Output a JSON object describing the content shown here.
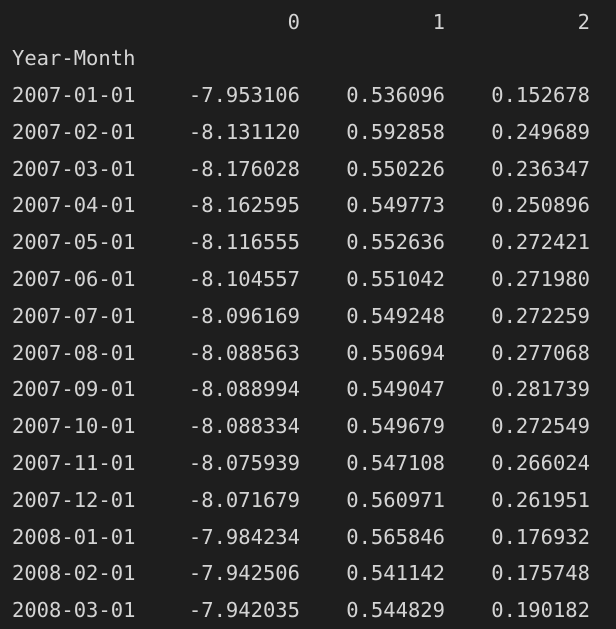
{
  "table": {
    "columns": [
      "0",
      "1",
      "2"
    ],
    "index_name": "Year-Month",
    "rows": [
      {
        "index": "2007-01-01",
        "values": [
          "-7.953106",
          "0.536096",
          "0.152678"
        ]
      },
      {
        "index": "2007-02-01",
        "values": [
          "-8.131120",
          "0.592858",
          "0.249689"
        ]
      },
      {
        "index": "2007-03-01",
        "values": [
          "-8.176028",
          "0.550226",
          "0.236347"
        ]
      },
      {
        "index": "2007-04-01",
        "values": [
          "-8.162595",
          "0.549773",
          "0.250896"
        ]
      },
      {
        "index": "2007-05-01",
        "values": [
          "-8.116555",
          "0.552636",
          "0.272421"
        ]
      },
      {
        "index": "2007-06-01",
        "values": [
          "-8.104557",
          "0.551042",
          "0.271980"
        ]
      },
      {
        "index": "2007-07-01",
        "values": [
          "-8.096169",
          "0.549248",
          "0.272259"
        ]
      },
      {
        "index": "2007-08-01",
        "values": [
          "-8.088563",
          "0.550694",
          "0.277068"
        ]
      },
      {
        "index": "2007-09-01",
        "values": [
          "-8.088994",
          "0.549047",
          "0.281739"
        ]
      },
      {
        "index": "2007-10-01",
        "values": [
          "-8.088334",
          "0.549679",
          "0.272549"
        ]
      },
      {
        "index": "2007-11-01",
        "values": [
          "-8.075939",
          "0.547108",
          "0.266024"
        ]
      },
      {
        "index": "2007-12-01",
        "values": [
          "-8.071679",
          "0.560971",
          "0.261951"
        ]
      },
      {
        "index": "2008-01-01",
        "values": [
          "-7.984234",
          "0.565846",
          "0.176932"
        ]
      },
      {
        "index": "2008-02-01",
        "values": [
          "-7.942506",
          "0.541142",
          "0.175748"
        ]
      },
      {
        "index": "2008-03-01",
        "values": [
          "-7.942035",
          "0.544829",
          "0.190182"
        ]
      }
    ]
  }
}
